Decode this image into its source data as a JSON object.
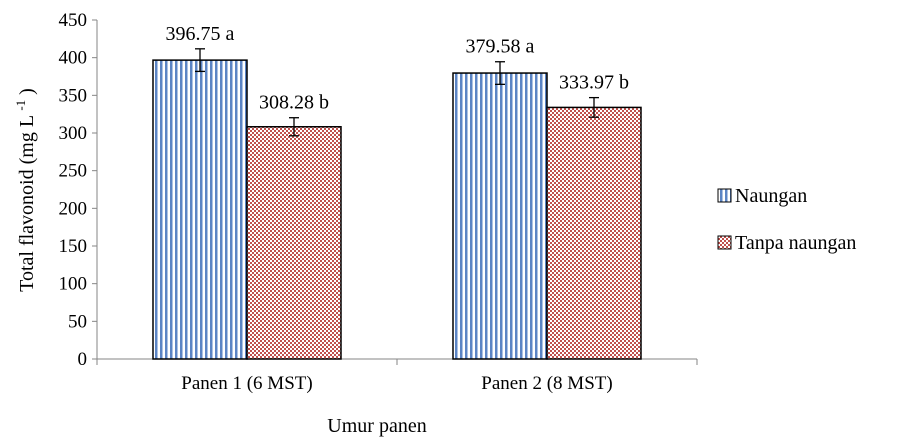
{
  "chart_data": {
    "type": "bar",
    "title": "",
    "xlabel": "Umur panen",
    "ylabel": "Total flavonoid",
    "ylabel_unit": "(mg L",
    "ylabel_superscript": "-1",
    "ylabel_close": ")",
    "categories": [
      "Panen 1 (6 MST)",
      "Panen 2 (8 MST)"
    ],
    "series": [
      {
        "name": "Naungan",
        "values": [
          396.75,
          379.58
        ],
        "errors": [
          15,
          15
        ],
        "labels": [
          "396.75 a",
          "379.58 a"
        ],
        "pattern": "vertical-stripes",
        "color": "#5b84c4",
        "border": "#000000"
      },
      {
        "name": "Tanpa naungan",
        "values": [
          308.28,
          333.97
        ],
        "errors": [
          12,
          13
        ],
        "labels": [
          "308.28 b",
          "333.97 b"
        ],
        "pattern": "checker",
        "color": "#c0504d",
        "border": "#000000"
      }
    ],
    "ylim": [
      0,
      450
    ],
    "yticks": [
      0,
      50,
      100,
      150,
      200,
      250,
      300,
      350,
      400,
      450
    ],
    "grid": false,
    "legend_position": "right"
  }
}
